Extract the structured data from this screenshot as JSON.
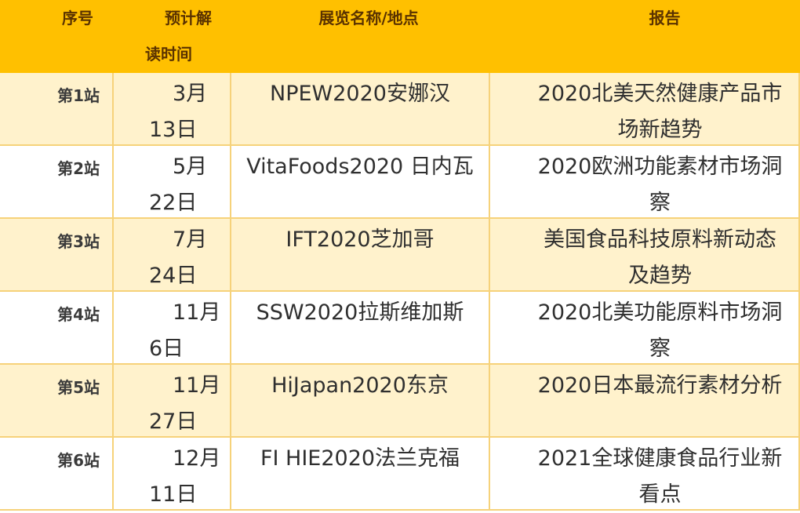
{
  "header": {
    "seq": "序号",
    "time_line1": "预计解",
    "time_line2": "读时间",
    "exhibition": "展览名称/地点",
    "report": "报告"
  },
  "rows": [
    {
      "seq": "第1站",
      "month": "3月",
      "day": "13日",
      "exhibition": "NPEW2020安娜汉",
      "report": "2020北美天然健康产品市场新趋势"
    },
    {
      "seq": "第2站",
      "month": "5月",
      "day": "22日",
      "exhibition": "VitaFoods2020 日内瓦",
      "report": "2020欧洲功能素材市场洞察"
    },
    {
      "seq": "第3站",
      "month": "7月",
      "day": "24日",
      "exhibition": "IFT2020芝加哥",
      "report": "美国食品科技原料新动态及趋势"
    },
    {
      "seq": "第4站",
      "month": "11月",
      "day": "6日",
      "exhibition": "SSW2020拉斯维加斯",
      "report": "2020北美功能原料市场洞察"
    },
    {
      "seq": "第5站",
      "month": "11月",
      "day": "27日",
      "exhibition": "HiJapan2020东京",
      "report": "2020日本最流行素材分析"
    },
    {
      "seq": "第6站",
      "month": "12月",
      "day": "11日",
      "exhibition": "FI HIE2020法兰克福",
      "report": "2021全球健康食品行业新看点"
    }
  ],
  "colors": {
    "header_bg": "#ffc000",
    "odd_row_bg": "#fff2cc",
    "even_row_bg": "#ffffff",
    "border": "#f6d27a"
  }
}
